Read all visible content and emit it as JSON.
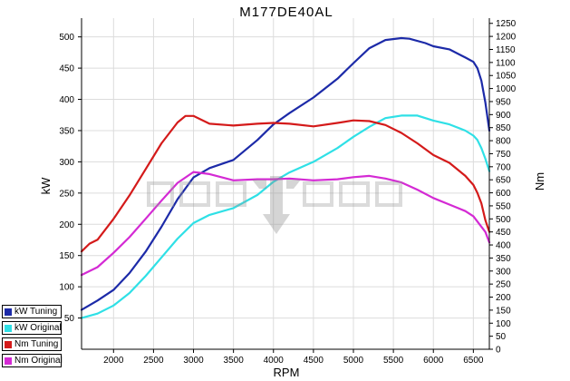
{
  "chart_data": {
    "type": "line",
    "title": "M177DE40AL",
    "xlabel": "RPM",
    "ylabel_left": "kW",
    "ylabel_right": "Nm",
    "xlim": [
      1600,
      6700
    ],
    "ylim_left": [
      0,
      530
    ],
    "ylim_right": [
      0,
      1270
    ],
    "x_ticks": [
      2000,
      2500,
      3000,
      3500,
      4000,
      4500,
      5000,
      5500,
      6000,
      6500
    ],
    "y_ticks_left": [
      50,
      100,
      150,
      200,
      250,
      300,
      350,
      400,
      450,
      500
    ],
    "y_ticks_right": [
      0,
      50,
      100,
      150,
      200,
      250,
      300,
      350,
      400,
      450,
      500,
      550,
      600,
      650,
      700,
      750,
      800,
      850,
      900,
      950,
      1000,
      1050,
      1100,
      1150,
      1200,
      1250
    ],
    "grid": true,
    "legend_position": "bottom-left",
    "series": [
      {
        "name": "kW Tuning",
        "axis": "left",
        "color": "#1c2aa8",
        "x": [
          1600,
          1800,
          2000,
          2200,
          2400,
          2600,
          2800,
          3000,
          3200,
          3500,
          3800,
          4000,
          4200,
          4500,
          4800,
          5000,
          5200,
          5400,
          5600,
          5700,
          5900,
          6000,
          6200,
          6400,
          6500,
          6550,
          6600,
          6650,
          6700
        ],
        "values": [
          63,
          78,
          95,
          122,
          156,
          196,
          240,
          275,
          290,
          303,
          335,
          360,
          378,
          403,
          433,
          458,
          482,
          495,
          498,
          497,
          490,
          485,
          480,
          467,
          460,
          450,
          430,
          395,
          350
        ]
      },
      {
        "name": "kW Original",
        "axis": "left",
        "color": "#2fe0e6",
        "x": [
          1600,
          1800,
          2000,
          2200,
          2400,
          2600,
          2800,
          3000,
          3200,
          3500,
          3800,
          4000,
          4200,
          4500,
          4800,
          5000,
          5200,
          5400,
          5600,
          5800,
          6000,
          6200,
          6400,
          6500,
          6550,
          6600,
          6650,
          6700
        ],
        "values": [
          50,
          57,
          70,
          90,
          117,
          147,
          177,
          202,
          215,
          226,
          247,
          268,
          283,
          300,
          322,
          340,
          356,
          370,
          374,
          374,
          366,
          360,
          350,
          342,
          335,
          322,
          305,
          285
        ]
      },
      {
        "name": "Nm Tuning",
        "axis": "right",
        "color": "#d41a1a",
        "x": [
          1600,
          1700,
          1800,
          2000,
          2200,
          2400,
          2600,
          2800,
          2900,
          3000,
          3200,
          3500,
          3800,
          4000,
          4200,
          4500,
          4800,
          5000,
          5200,
          5400,
          5600,
          5800,
          6000,
          6200,
          6400,
          6500,
          6550,
          6600,
          6650,
          6700
        ],
        "values": [
          375,
          405,
          420,
          500,
          590,
          690,
          790,
          870,
          895,
          895,
          865,
          858,
          865,
          868,
          865,
          855,
          868,
          878,
          875,
          860,
          830,
          790,
          745,
          715,
          665,
          630,
          600,
          560,
          495,
          450
        ]
      },
      {
        "name": "Nm Original",
        "axis": "right",
        "color": "#d42ad4",
        "x": [
          1600,
          1800,
          2000,
          2200,
          2400,
          2600,
          2800,
          3000,
          3200,
          3500,
          3800,
          4000,
          4200,
          4500,
          4800,
          5000,
          5200,
          5400,
          5600,
          5800,
          6000,
          6200,
          6400,
          6500,
          6550,
          6600,
          6650,
          6700
        ],
        "values": [
          285,
          315,
          370,
          430,
          500,
          570,
          638,
          680,
          672,
          648,
          652,
          652,
          655,
          648,
          652,
          660,
          665,
          655,
          640,
          612,
          580,
          555,
          530,
          510,
          490,
          470,
          450,
          410
        ]
      }
    ]
  }
}
